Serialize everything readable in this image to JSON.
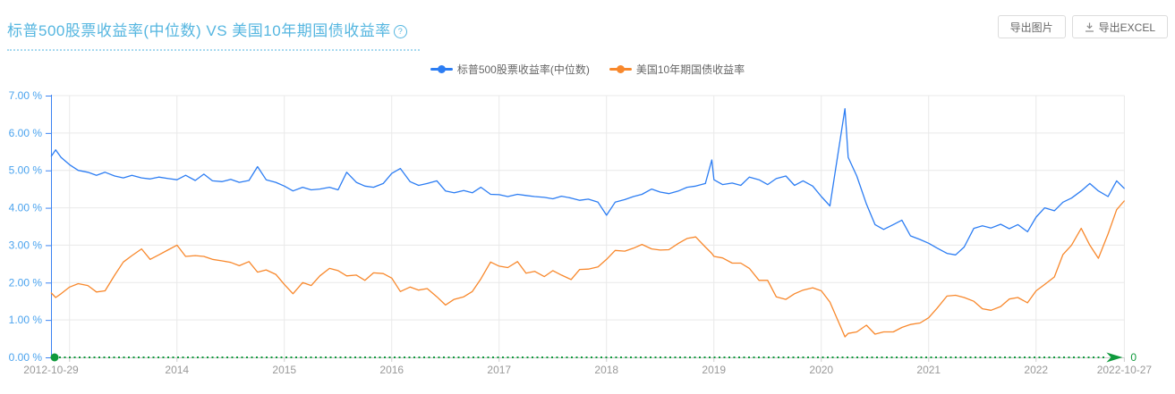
{
  "page": {
    "title": "标普500股票收益率(中位数) VS 美国10年期国债收益率",
    "help_glyph": "?",
    "buttons": [
      {
        "label": "导出图片"
      },
      {
        "label": "导出EXCEL",
        "icon": "download-icon"
      }
    ]
  },
  "colors": {
    "title": "#55b6e0",
    "series_blue": "#2c7df3",
    "series_orange": "#f8882c",
    "axis_line_blue": "#3b82f2",
    "y_label": "#4ba3ee",
    "x_label": "#999999",
    "grid": "#e9e9e9",
    "axis_gray": "#cccccc",
    "green": "#0f9a3c",
    "legend_text": "#666666"
  },
  "chart_data": {
    "type": "line",
    "title": "标普500股票收益率(中位数) VS 美国10年期国债收益率",
    "unit": "%",
    "grid": true,
    "legend_position": "top-center",
    "y_axis": {
      "min": 0,
      "max": 7,
      "tick_labels": [
        "0.00 %",
        "1.00 %",
        "2.00 %",
        "3.00 %",
        "4.00 %",
        "5.00 %",
        "6.00 %",
        "7.00 %"
      ]
    },
    "x_axis": {
      "start": 2012.827,
      "end": 2022.822,
      "ticks": [
        {
          "t": 2012.827,
          "label": "2012-10-29"
        },
        {
          "t": 2014,
          "label": "2014"
        },
        {
          "t": 2015,
          "label": "2015"
        },
        {
          "t": 2016,
          "label": "2016"
        },
        {
          "t": 2017,
          "label": "2017"
        },
        {
          "t": 2018,
          "label": "2018"
        },
        {
          "t": 2019,
          "label": "2019"
        },
        {
          "t": 2020,
          "label": "2020"
        },
        {
          "t": 2021,
          "label": "2021"
        },
        {
          "t": 2022,
          "label": "2022"
        },
        {
          "t": 2022.822,
          "label": "2022-10-27"
        }
      ],
      "grid_years": [
        2013,
        2014,
        2015,
        2016,
        2017,
        2018,
        2019,
        2020,
        2021,
        2022
      ]
    },
    "zero_line": {
      "value": 0,
      "label": "0",
      "style": "green-dotted-arrow"
    },
    "legend": [
      {
        "name": "标普500股票收益率(中位数)",
        "color": "#2c7df3"
      },
      {
        "name": "美国10年期国债收益率",
        "color": "#f8882c"
      }
    ],
    "x": [
      2012.83,
      2012.87,
      2012.92,
      2013,
      2013.08,
      2013.17,
      2013.25,
      2013.33,
      2013.42,
      2013.5,
      2013.58,
      2013.67,
      2013.75,
      2013.83,
      2013.92,
      2014,
      2014.08,
      2014.17,
      2014.25,
      2014.33,
      2014.42,
      2014.5,
      2014.58,
      2014.67,
      2014.75,
      2014.83,
      2014.92,
      2015,
      2015.08,
      2015.17,
      2015.25,
      2015.33,
      2015.42,
      2015.5,
      2015.58,
      2015.67,
      2015.75,
      2015.83,
      2015.92,
      2016,
      2016.08,
      2016.17,
      2016.25,
      2016.33,
      2016.42,
      2016.5,
      2016.58,
      2016.67,
      2016.75,
      2016.83,
      2016.92,
      2017,
      2017.08,
      2017.17,
      2017.25,
      2017.33,
      2017.42,
      2017.5,
      2017.58,
      2017.67,
      2017.75,
      2017.83,
      2017.92,
      2018,
      2018.08,
      2018.17,
      2018.25,
      2018.33,
      2018.42,
      2018.5,
      2018.58,
      2018.67,
      2018.75,
      2018.83,
      2018.92,
      2018.98,
      2019,
      2019.08,
      2019.17,
      2019.25,
      2019.33,
      2019.42,
      2019.5,
      2019.58,
      2019.67,
      2019.75,
      2019.83,
      2019.92,
      2020,
      2020.08,
      2020.22,
      2020.25,
      2020.33,
      2020.42,
      2020.5,
      2020.58,
      2020.67,
      2020.75,
      2020.83,
      2020.92,
      2021,
      2021.08,
      2021.17,
      2021.25,
      2021.33,
      2021.42,
      2021.5,
      2021.58,
      2021.67,
      2021.75,
      2021.83,
      2021.92,
      2022,
      2022.08,
      2022.17,
      2022.25,
      2022.33,
      2022.42,
      2022.5,
      2022.58,
      2022.67,
      2022.75,
      2022.82
    ],
    "series": [
      {
        "name": "标普500股票收益率(中位数)",
        "color": "#2c7df3",
        "values": [
          5.38,
          5.55,
          5.35,
          5.15,
          5.0,
          4.95,
          4.87,
          4.95,
          4.85,
          4.8,
          4.87,
          4.8,
          4.77,
          4.82,
          4.78,
          4.75,
          4.87,
          4.73,
          4.9,
          4.72,
          4.7,
          4.76,
          4.68,
          4.73,
          5.1,
          4.75,
          4.68,
          4.58,
          4.45,
          4.55,
          4.48,
          4.5,
          4.55,
          4.48,
          4.95,
          4.68,
          4.58,
          4.55,
          4.65,
          4.92,
          5.05,
          4.7,
          4.6,
          4.65,
          4.72,
          4.45,
          4.4,
          4.46,
          4.4,
          4.55,
          4.36,
          4.35,
          4.3,
          4.36,
          4.33,
          4.3,
          4.28,
          4.24,
          4.31,
          4.26,
          4.2,
          4.23,
          4.15,
          3.8,
          4.15,
          4.22,
          4.3,
          4.36,
          4.5,
          4.42,
          4.38,
          4.45,
          4.55,
          4.58,
          4.65,
          5.28,
          4.75,
          4.62,
          4.66,
          4.6,
          4.82,
          4.75,
          4.62,
          4.78,
          4.85,
          4.6,
          4.72,
          4.58,
          4.3,
          4.05,
          6.65,
          5.35,
          4.85,
          4.1,
          3.55,
          3.42,
          3.55,
          3.67,
          3.25,
          3.15,
          3.05,
          2.92,
          2.78,
          2.74,
          2.95,
          3.45,
          3.52,
          3.46,
          3.56,
          3.44,
          3.55,
          3.36,
          3.75,
          4.0,
          3.92,
          4.15,
          4.26,
          4.45,
          4.65,
          4.45,
          4.3,
          4.72,
          4.52
        ]
      },
      {
        "name": "美国10年期国债收益率",
        "color": "#f8882c",
        "values": [
          1.72,
          1.6,
          1.7,
          1.88,
          1.97,
          1.92,
          1.75,
          1.78,
          2.2,
          2.55,
          2.72,
          2.9,
          2.62,
          2.74,
          2.88,
          3.0,
          2.7,
          2.72,
          2.7,
          2.62,
          2.58,
          2.54,
          2.45,
          2.56,
          2.28,
          2.34,
          2.22,
          1.95,
          1.7,
          2.0,
          1.92,
          2.18,
          2.38,
          2.32,
          2.18,
          2.2,
          2.06,
          2.26,
          2.24,
          2.12,
          1.76,
          1.88,
          1.8,
          1.84,
          1.62,
          1.4,
          1.55,
          1.62,
          1.76,
          2.1,
          2.55,
          2.44,
          2.4,
          2.56,
          2.25,
          2.3,
          2.16,
          2.32,
          2.2,
          2.08,
          2.35,
          2.36,
          2.42,
          2.62,
          2.86,
          2.84,
          2.92,
          3.02,
          2.9,
          2.87,
          2.88,
          3.05,
          3.18,
          3.22,
          2.95,
          2.78,
          2.7,
          2.66,
          2.52,
          2.52,
          2.38,
          2.06,
          2.06,
          1.62,
          1.55,
          1.7,
          1.8,
          1.86,
          1.78,
          1.48,
          0.55,
          0.64,
          0.68,
          0.86,
          0.62,
          0.68,
          0.68,
          0.8,
          0.88,
          0.92,
          1.06,
          1.32,
          1.64,
          1.66,
          1.6,
          1.5,
          1.3,
          1.26,
          1.36,
          1.56,
          1.6,
          1.46,
          1.78,
          1.95,
          2.15,
          2.75,
          3.0,
          3.45,
          3.0,
          2.65,
          3.3,
          3.95,
          4.18
        ]
      }
    ]
  }
}
